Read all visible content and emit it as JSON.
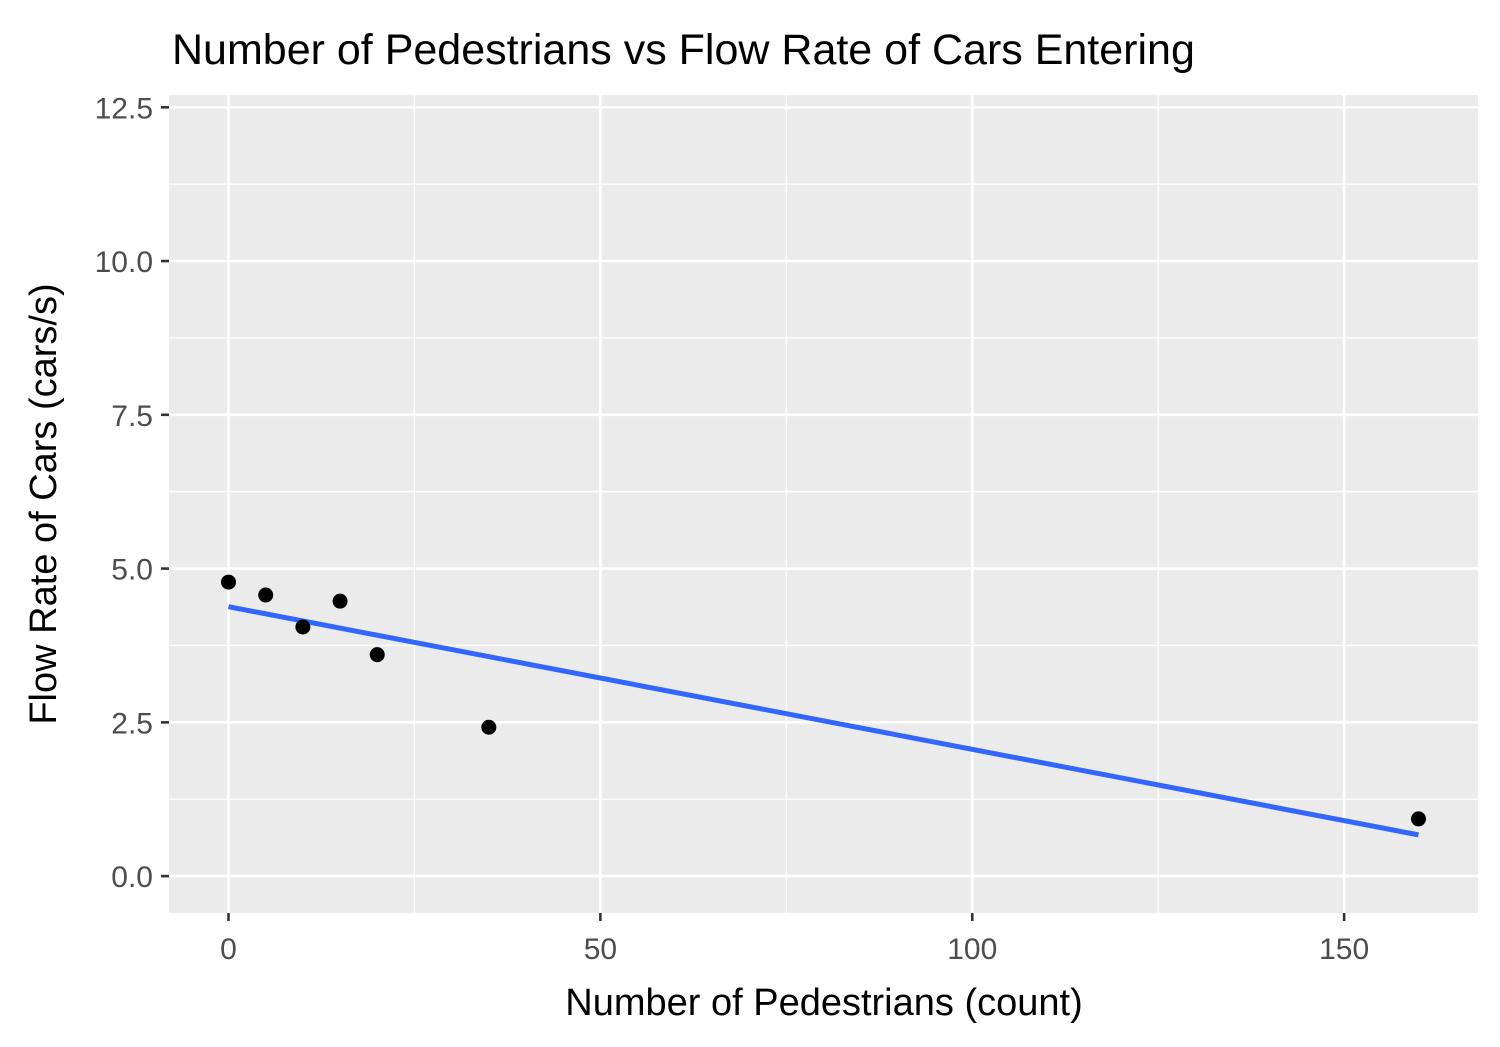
{
  "chart_data": {
    "type": "scatter",
    "title": "Number of Pedestrians vs Flow Rate of Cars Entering",
    "xlabel": "Number of Pedestrians (count)",
    "ylabel": "Flow Rate of Cars (cars/s)",
    "xlim": [
      -8,
      168
    ],
    "ylim": [
      -0.6,
      12.7
    ],
    "x_ticks": [
      0,
      50,
      100,
      150
    ],
    "x_tick_labels": [
      "0",
      "50",
      "100",
      "150"
    ],
    "x_minor_ticks": [
      25,
      75,
      125
    ],
    "y_ticks": [
      0,
      2.5,
      5,
      7.5,
      10,
      12.5
    ],
    "y_tick_labels": [
      "0.0",
      "2.5",
      "5.0",
      "7.5",
      "10.0",
      "12.5"
    ],
    "y_minor_ticks": [
      1.25,
      3.75,
      6.25,
      8.75,
      11.25
    ],
    "grid": true,
    "series": [
      {
        "type": "scatter",
        "points": [
          {
            "x": 0,
            "y": 4.78
          },
          {
            "x": 5,
            "y": 4.57
          },
          {
            "x": 10,
            "y": 4.05
          },
          {
            "x": 15,
            "y": 4.47
          },
          {
            "x": 20,
            "y": 3.6
          },
          {
            "x": 35,
            "y": 2.42
          },
          {
            "x": 160,
            "y": 0.93
          }
        ],
        "color": "#000000"
      },
      {
        "type": "line",
        "x": [
          0,
          160
        ],
        "y": [
          4.38,
          0.67
        ],
        "color": "#3366ff"
      }
    ],
    "colors": {
      "panel_background": "#ebebeb",
      "grid": "#ffffff",
      "tick_mark": "#333333",
      "tick_label": "#4d4d4d"
    }
  }
}
